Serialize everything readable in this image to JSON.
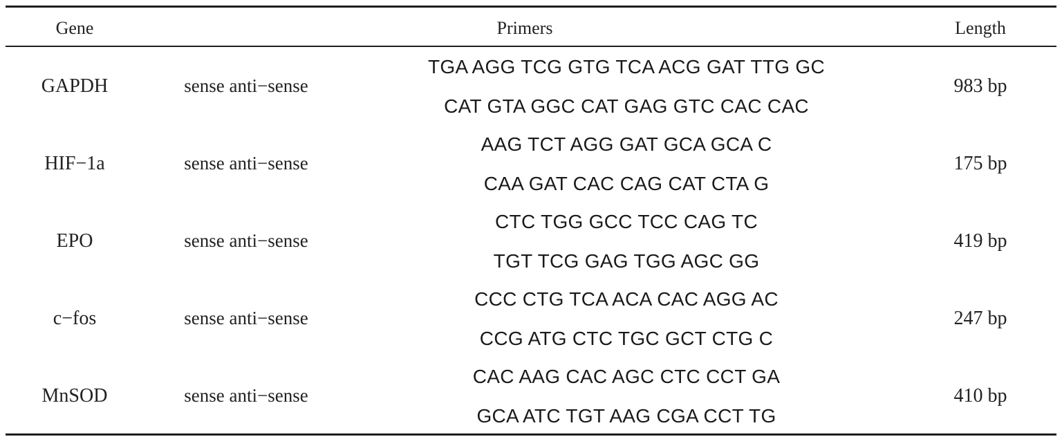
{
  "table": {
    "headers": {
      "gene": "Gene",
      "primers": "Primers",
      "length": "Length"
    },
    "rows": [
      {
        "gene": "GAPDH",
        "type": "sense anti−sense",
        "sense": "TGA AGG TCG GTG TCA ACG GAT TTG GC",
        "antisense": "CAT GTA GGC CAT GAG GTC CAC CAC",
        "length": "983 bp"
      },
      {
        "gene": "HIF−1a",
        "type": "sense anti−sense",
        "sense": "AAG TCT AGG GAT GCA GCA C",
        "antisense": "CAA GAT CAC CAG CAT CTA G",
        "length": "175 bp"
      },
      {
        "gene": "EPO",
        "type": "sense anti−sense",
        "sense": "CTC TGG GCC TCC CAG TC",
        "antisense": "TGT TCG GAG TGG AGC GG",
        "length": "419 bp"
      },
      {
        "gene": "c−fos",
        "type": "sense anti−sense",
        "sense": "CCC CTG TCA ACA CAC AGG AC",
        "antisense": "CCG ATG CTC TGC GCT CTG C",
        "length": "247 bp"
      },
      {
        "gene": "MnSOD",
        "type": "sense anti−sense",
        "sense": "CAC AAG CAC AGC CTC CCT GA",
        "antisense": "GCA ATC TGT AAG CGA CCT TG",
        "length": "410 bp"
      }
    ]
  }
}
